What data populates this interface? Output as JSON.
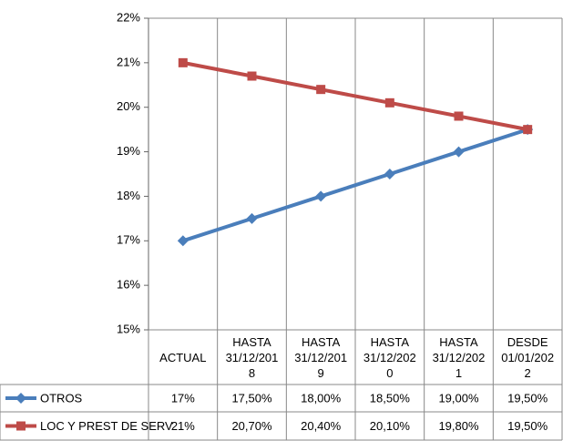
{
  "chart_data": {
    "type": "line",
    "categories": [
      "ACTUAL",
      "HASTA 31/12/2018",
      "HASTA 31/12/2019",
      "HASTA 31/12/2020",
      "HASTA 31/12/2021",
      "DESDE 01/01/2022"
    ],
    "series": [
      {
        "name": "OTROS",
        "color": "#4a7ebb",
        "marker": "diamond",
        "values": [
          17,
          17.5,
          18,
          18.5,
          19,
          19.5
        ],
        "value_labels": [
          "17%",
          "17,50%",
          "18,00%",
          "18,50%",
          "19,00%",
          "19,50%"
        ]
      },
      {
        "name": "LOC Y PREST DE SERV",
        "color": "#be4b48",
        "marker": "square",
        "values": [
          21,
          20.7,
          20.4,
          20.1,
          19.8,
          19.5
        ],
        "value_labels": [
          "21%",
          "20,70%",
          "20,40%",
          "20,10%",
          "19,80%",
          "19,50%"
        ]
      }
    ],
    "ylim": [
      15,
      22
    ],
    "yticks": [
      {
        "value": 15,
        "label": "15%"
      },
      {
        "value": 16,
        "label": "16%"
      },
      {
        "value": 17,
        "label": "17%"
      },
      {
        "value": 18,
        "label": "18%"
      },
      {
        "value": 19,
        "label": "19%"
      },
      {
        "value": 20,
        "label": "20%"
      },
      {
        "value": 21,
        "label": "21%"
      },
      {
        "value": 22,
        "label": "22%"
      }
    ],
    "grid": false
  }
}
